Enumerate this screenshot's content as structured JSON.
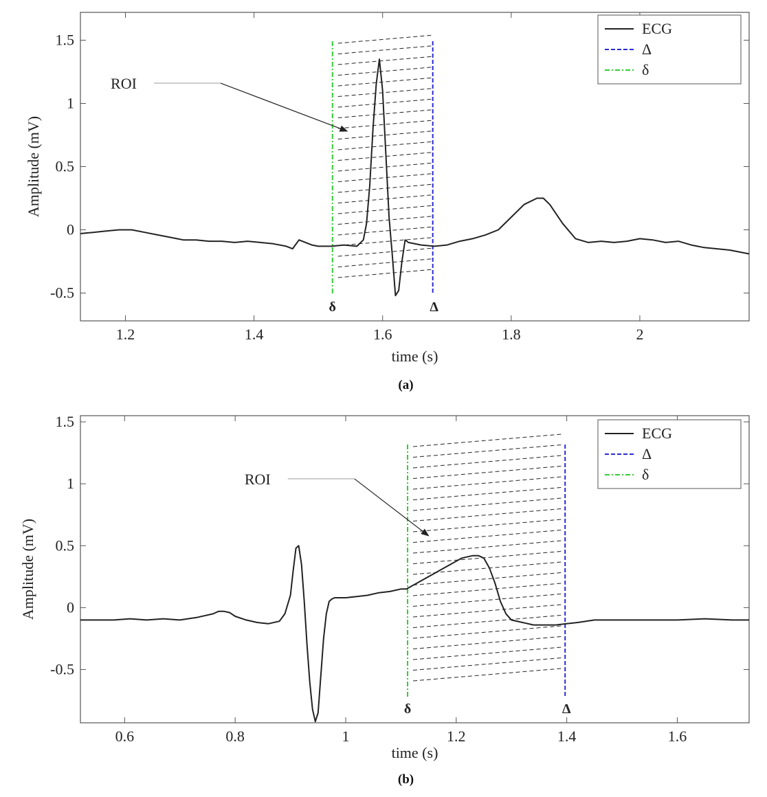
{
  "chart_data": [
    {
      "type": "line",
      "panel_label": "(a)",
      "xlabel": "time (s)",
      "ylabel": "Amplitude (mV)",
      "xlim": [
        1.13,
        2.17
      ],
      "ylim": [
        -0.72,
        1.72
      ],
      "xticks": [
        1.2,
        1.4,
        1.6,
        1.8,
        2
      ],
      "xtick_labels": [
        "1.2",
        "1.4",
        "1.6",
        "1.8",
        "2"
      ],
      "yticks": [
        -0.5,
        0,
        0.5,
        1,
        1.5
      ],
      "ytick_labels": [
        "-0.5",
        "0",
        "0.5",
        "1",
        "1.5"
      ],
      "legend_position": "top-right",
      "legend": [
        {
          "label": "ECG",
          "color": "#222222",
          "style": "solid"
        },
        {
          "label": "Δ",
          "color": "#2a2ad0",
          "style": "dashed"
        },
        {
          "label": "δ",
          "color": "#33cc33",
          "style": "dash-dot"
        }
      ],
      "roi": {
        "label": "ROI",
        "start": 1.522,
        "end": 1.678,
        "arrow_from": [
          1.3,
          1.16
        ],
        "arrow_to": [
          1.545,
          0.78
        ]
      },
      "markers": {
        "delta_small": "δ",
        "delta_big": "Δ"
      },
      "series": [
        {
          "name": "ECG",
          "x": [
            1.13,
            1.15,
            1.17,
            1.19,
            1.21,
            1.23,
            1.25,
            1.27,
            1.29,
            1.31,
            1.33,
            1.35,
            1.37,
            1.39,
            1.41,
            1.43,
            1.45,
            1.46,
            1.47,
            1.48,
            1.49,
            1.5,
            1.52,
            1.54,
            1.56,
            1.57,
            1.575,
            1.58,
            1.585,
            1.59,
            1.595,
            1.6,
            1.605,
            1.61,
            1.615,
            1.62,
            1.625,
            1.63,
            1.635,
            1.64,
            1.66,
            1.68,
            1.7,
            1.72,
            1.74,
            1.76,
            1.78,
            1.8,
            1.82,
            1.84,
            1.85,
            1.86,
            1.88,
            1.9,
            1.92,
            1.94,
            1.96,
            1.98,
            2.0,
            2.02,
            2.04,
            2.06,
            2.08,
            2.1,
            2.12,
            2.14,
            2.17
          ],
          "y": [
            -0.03,
            -0.02,
            -0.01,
            0.0,
            0.0,
            -0.02,
            -0.04,
            -0.06,
            -0.08,
            -0.08,
            -0.09,
            -0.09,
            -0.1,
            -0.09,
            -0.1,
            -0.11,
            -0.13,
            -0.15,
            -0.08,
            -0.1,
            -0.12,
            -0.13,
            -0.13,
            -0.12,
            -0.13,
            -0.08,
            0.05,
            0.35,
            0.8,
            1.15,
            1.35,
            1.1,
            0.6,
            0.1,
            -0.2,
            -0.52,
            -0.48,
            -0.25,
            -0.08,
            -0.1,
            -0.12,
            -0.13,
            -0.12,
            -0.09,
            -0.07,
            -0.04,
            0.0,
            0.1,
            0.2,
            0.25,
            0.25,
            0.2,
            0.05,
            -0.07,
            -0.1,
            -0.09,
            -0.1,
            -0.09,
            -0.07,
            -0.08,
            -0.1,
            -0.09,
            -0.12,
            -0.14,
            -0.15,
            -0.16,
            -0.19
          ]
        }
      ]
    },
    {
      "type": "line",
      "panel_label": "(b)",
      "xlabel": "time (s)",
      "ylabel": "Amplitude (mV)",
      "xlim": [
        0.52,
        1.73
      ],
      "ylim": [
        -0.93,
        1.55
      ],
      "xticks": [
        0.6,
        0.8,
        1.0,
        1.2,
        1.4,
        1.6
      ],
      "xtick_labels": [
        "0.6",
        "0.8",
        "1",
        "1.2",
        "1.4",
        "1.6"
      ],
      "yticks": [
        -0.5,
        0,
        0.5,
        1,
        1.5
      ],
      "ytick_labels": [
        "-0.5",
        "0",
        "0.5",
        "1",
        "1.5"
      ],
      "legend_position": "top-right",
      "legend": [
        {
          "label": "ECG",
          "color": "#222222",
          "style": "solid"
        },
        {
          "label": "Δ",
          "color": "#2a2ad0",
          "style": "dashed"
        },
        {
          "label": "δ",
          "color": "#33cc33",
          "style": "dash-dot"
        }
      ],
      "roi": {
        "label": "ROI",
        "start": 1.112,
        "end": 1.397,
        "arrow_from": [
          0.96,
          1.04
        ],
        "arrow_to": [
          1.15,
          0.58
        ]
      },
      "markers": {
        "delta_small": "δ",
        "delta_big": "Δ"
      },
      "series": [
        {
          "name": "ECG",
          "x": [
            0.52,
            0.55,
            0.58,
            0.61,
            0.64,
            0.67,
            0.7,
            0.73,
            0.76,
            0.77,
            0.78,
            0.79,
            0.8,
            0.82,
            0.84,
            0.86,
            0.88,
            0.89,
            0.9,
            0.905,
            0.91,
            0.915,
            0.92,
            0.925,
            0.93,
            0.935,
            0.94,
            0.945,
            0.95,
            0.955,
            0.96,
            0.965,
            0.97,
            0.975,
            0.98,
            0.99,
            1.0,
            1.02,
            1.04,
            1.06,
            1.08,
            1.1,
            1.11,
            1.13,
            1.15,
            1.17,
            1.19,
            1.21,
            1.23,
            1.24,
            1.25,
            1.26,
            1.27,
            1.28,
            1.29,
            1.3,
            1.32,
            1.34,
            1.36,
            1.38,
            1.4,
            1.42,
            1.45,
            1.5,
            1.55,
            1.6,
            1.65,
            1.7,
            1.73
          ],
          "y": [
            -0.1,
            -0.1,
            -0.1,
            -0.09,
            -0.1,
            -0.09,
            -0.1,
            -0.08,
            -0.05,
            -0.03,
            -0.03,
            -0.04,
            -0.07,
            -0.1,
            -0.12,
            -0.13,
            -0.11,
            -0.05,
            0.1,
            0.3,
            0.48,
            0.5,
            0.35,
            0.05,
            -0.3,
            -0.6,
            -0.82,
            -0.92,
            -0.85,
            -0.55,
            -0.25,
            -0.05,
            0.05,
            0.07,
            0.08,
            0.08,
            0.08,
            0.09,
            0.1,
            0.12,
            0.13,
            0.15,
            0.15,
            0.2,
            0.25,
            0.3,
            0.35,
            0.4,
            0.42,
            0.42,
            0.4,
            0.32,
            0.2,
            0.05,
            -0.05,
            -0.1,
            -0.12,
            -0.14,
            -0.14,
            -0.14,
            -0.13,
            -0.12,
            -0.1,
            -0.1,
            -0.1,
            -0.1,
            -0.09,
            -0.1,
            -0.1
          ]
        }
      ]
    }
  ]
}
